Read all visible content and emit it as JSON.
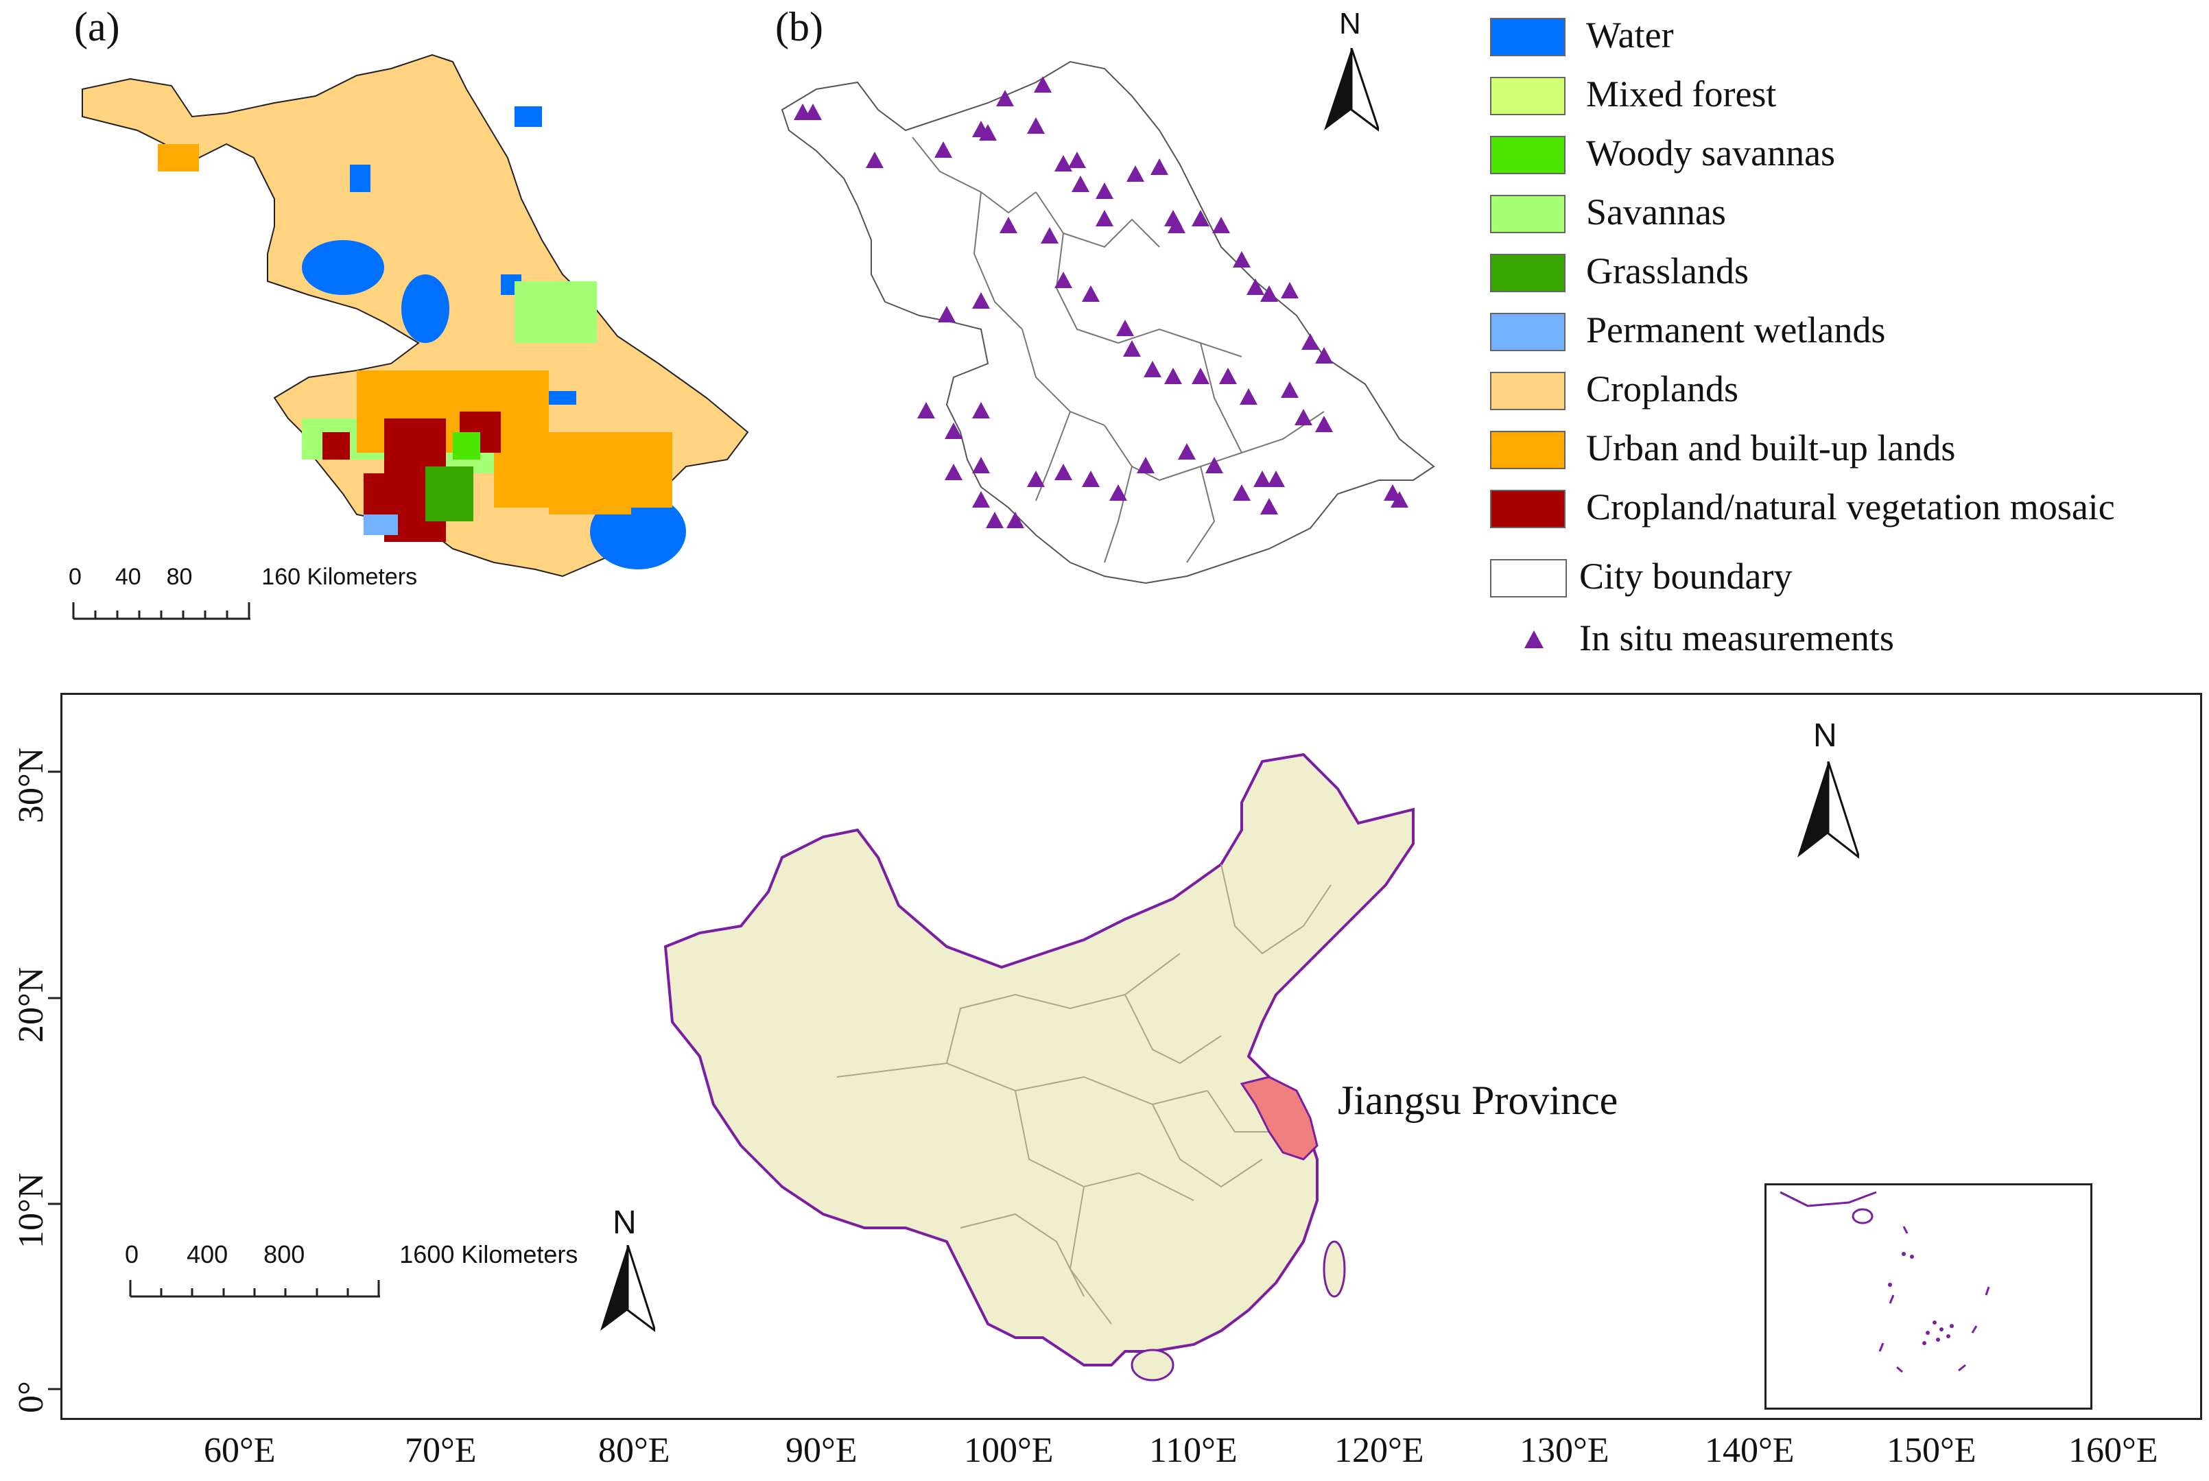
{
  "panel_a": {
    "label": "(a)",
    "scale_bar": {
      "ticks": [
        "0",
        "40",
        "80",
        "160 Kilometers"
      ]
    }
  },
  "panel_b": {
    "label": "(b)",
    "north_label": "N"
  },
  "legend": {
    "items": [
      {
        "label": "Water",
        "color": "#0070ff"
      },
      {
        "label": "Mixed forest",
        "color": "#d1ff73"
      },
      {
        "label": "Woody savannas",
        "color": "#4ce600"
      },
      {
        "label": "Savannas",
        "color": "#a3ff73"
      },
      {
        "label": "Grasslands",
        "color": "#38a800"
      },
      {
        "label": "Permanent wetlands",
        "color": "#73b2ff"
      },
      {
        "label": "Croplands",
        "color": "#ffd37f"
      },
      {
        "label": "Urban and built-up lands",
        "color": "#ffaa00"
      },
      {
        "label": "Cropland/natural vegetation mosaic",
        "color": "#a80000"
      }
    ],
    "city_boundary_label": "City boundary",
    "in_situ_label": "In situ measurements",
    "in_situ_color": "#7a1fa2"
  },
  "china_map": {
    "province_label": "Jiangsu Province",
    "north_label_right": "N",
    "north_label_left": "N",
    "lat_ticks": [
      "30°N",
      "20°N",
      "10°N",
      "0°"
    ],
    "lon_ticks": [
      "60°E",
      "70°E",
      "80°E",
      "90°E",
      "100°E",
      "110°E",
      "120°E",
      "130°E",
      "140°E",
      "150°E",
      "160°E"
    ],
    "scale_bar": {
      "ticks": [
        "0",
        "400",
        "800",
        "1600 Kilometers"
      ]
    },
    "colors": {
      "land": "#f0efcd",
      "highlight": "#f08080",
      "coast": "#7a1fa2"
    }
  }
}
